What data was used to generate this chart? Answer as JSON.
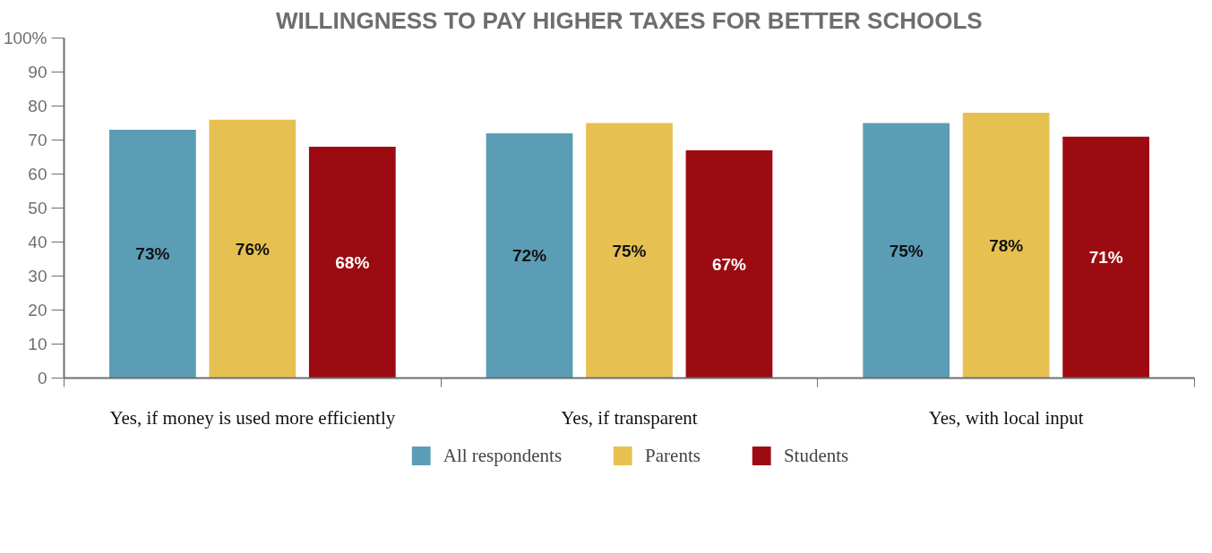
{
  "chart_data": {
    "type": "bar",
    "title": "WILLINGNESS TO PAY HIGHER TAXES FOR BETTER SCHOOLS",
    "categories": [
      "Yes, if money is used more efficiently",
      "Yes, if transparent",
      "Yes, with local input"
    ],
    "series": [
      {
        "name": "All respondents",
        "color": "#5b9db5",
        "values": [
          73,
          72,
          75
        ],
        "value_labels": [
          "73%",
          "72%",
          "75%"
        ]
      },
      {
        "name": "Parents",
        "color": "#e7c052",
        "values": [
          76,
          75,
          78
        ],
        "value_labels": [
          "76%",
          "75%",
          "78%"
        ]
      },
      {
        "name": "Students",
        "color": "#9c0b12",
        "values": [
          68,
          67,
          71
        ],
        "value_labels": [
          "68%",
          "67%",
          "71%"
        ]
      }
    ],
    "ylim": [
      0,
      100
    ],
    "yticks": [
      0,
      10,
      20,
      30,
      40,
      50,
      60,
      70,
      80,
      90,
      {
        "value": 100,
        "label": "100%"
      }
    ],
    "grid": false,
    "legend": "bottom"
  }
}
